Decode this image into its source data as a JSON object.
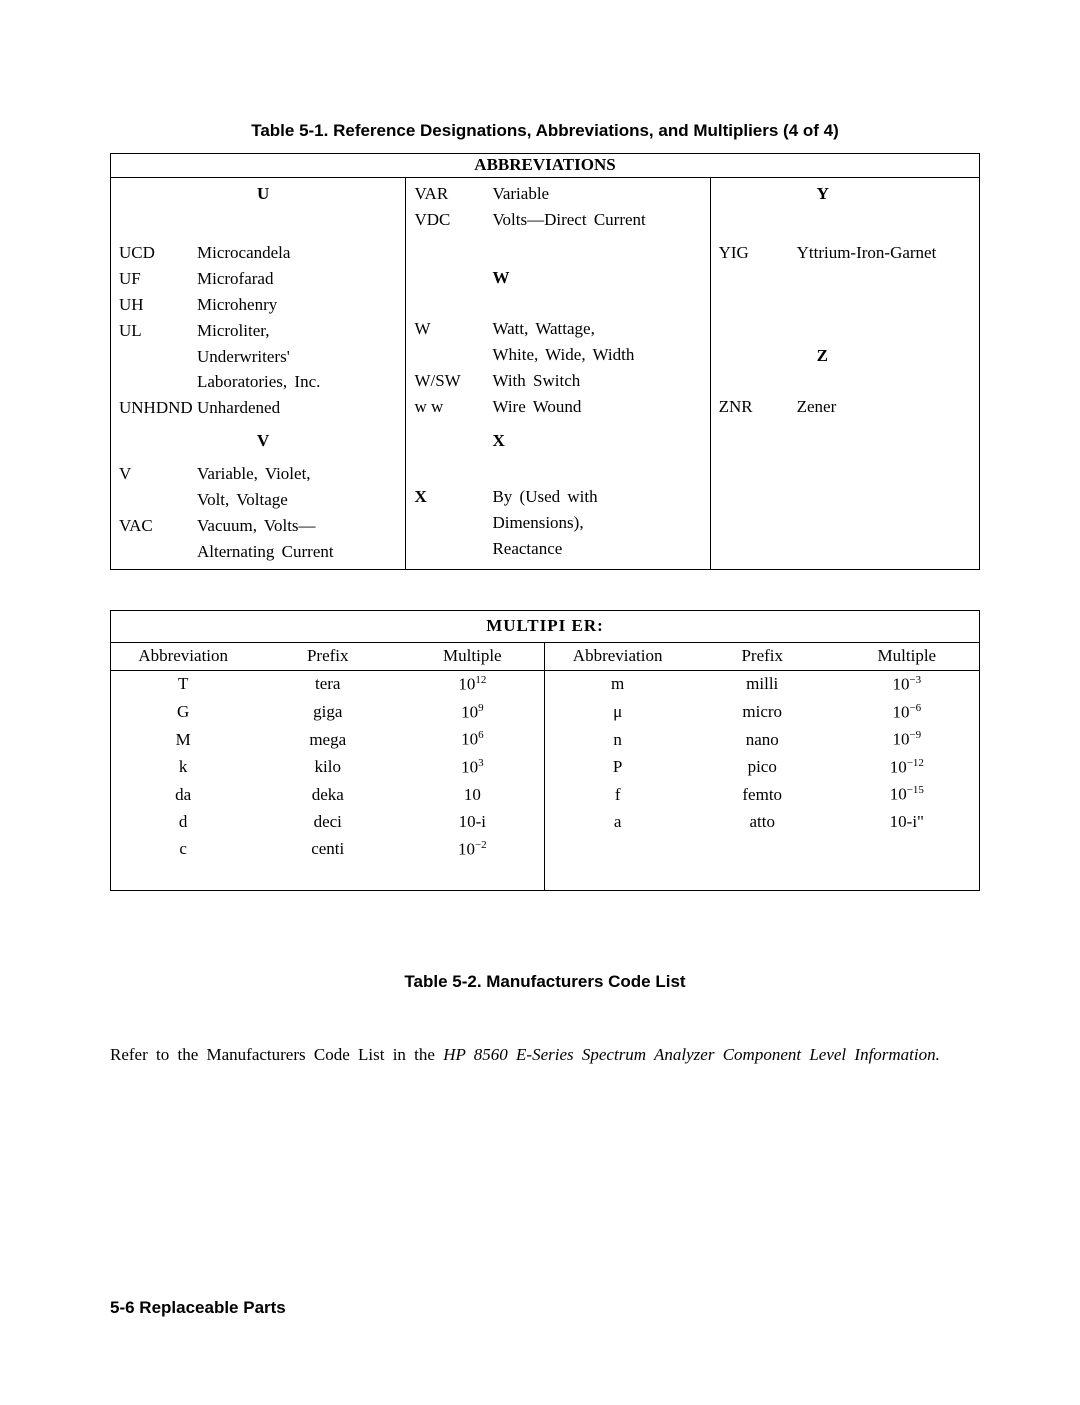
{
  "title1": "Table 5-1. Reference Designations, Abbreviations, and Multipliers (4 of 4)",
  "abbr_header": "ABBREVIATIONS",
  "col1": {
    "letterU": "U",
    "rows": [
      {
        "a": "UCD",
        "d": "Microcandela"
      },
      {
        "a": "UF",
        "d": "Microfarad"
      },
      {
        "a": "UH",
        "d": "Microhenry"
      },
      {
        "a": "UL",
        "d": "Microliter,"
      },
      {
        "a": "",
        "d": "Underwriters'"
      },
      {
        "a": "",
        "d": "Laboratories, Inc."
      },
      {
        "a": "UNHDND",
        "d": "Unhardened"
      }
    ],
    "letterV": "V",
    "rowsV": [
      {
        "a": "V",
        "d": "Variable, Violet,"
      },
      {
        "a": "",
        "d": "Volt, Voltage"
      },
      {
        "a": "VAC",
        "d": "Vacuum, Volts—"
      },
      {
        "a": "",
        "d": "Alternating Current"
      }
    ]
  },
  "col2": {
    "rows1": [
      {
        "a": "VAR",
        "d": "Variable"
      },
      {
        "a": "VDC",
        "d": "Volts—Direct Current"
      }
    ],
    "letterW": "W",
    "rowsW": [
      {
        "a": "W",
        "d": "Watt, Wattage,"
      },
      {
        "a": "",
        "d": "White, Wide, Width"
      },
      {
        "a": "W/SW",
        "d": "With Switch"
      },
      {
        "a": "w w",
        "d": "Wire Wound"
      }
    ],
    "letterX": "X",
    "rowsX": [
      {
        "a": "X",
        "d": "By (Used with"
      },
      {
        "a": "",
        "d": "Dimensions),"
      },
      {
        "a": "",
        "d": "Reactance"
      }
    ]
  },
  "col3": {
    "letterY": "Y",
    "rowsY": [
      {
        "a": "YIG",
        "d": "Yttrium-Iron-Garnet"
      }
    ],
    "letterZ": "Z",
    "rowsZ": [
      {
        "a": "ZNR",
        "d": "Zener"
      }
    ]
  },
  "mult": {
    "header": "MULTIPI ER:",
    "cols": [
      "Abbreviation",
      "Prefix",
      "Multiple",
      "Abbreviation",
      "Prefix",
      "Multiple"
    ],
    "rows": [
      [
        "T",
        "tera",
        "10<sup>12</sup>",
        "m",
        "milli",
        "10<sup>−3</sup>"
      ],
      [
        "G",
        "giga",
        "10<sup>9</sup>",
        "<span class=\"mu\">μ</span>",
        "micro",
        "10<sup>−6</sup>"
      ],
      [
        "M",
        "mega",
        "10<sup>6</sup>",
        "n",
        "nano",
        "10<sup>−9</sup>"
      ],
      [
        "k",
        "kilo",
        "10<sup>3</sup>",
        "P",
        "pico",
        "10<sup>−12</sup>"
      ],
      [
        "da",
        "deka",
        "10",
        "f",
        "femto",
        "10<sup>−15</sup>"
      ],
      [
        "d",
        "deci",
        "10-i",
        "a",
        "atto",
        "10-i\""
      ],
      [
        "c",
        "centi",
        "10<sup>−2</sup>",
        "",
        "",
        ""
      ]
    ]
  },
  "title2": "Table 5-2. Manufacturers Code List",
  "para1": "Refer to the Manufacturers Code List in the ",
  "para_em": "HP 8560 E-Series Spectrum Analyzer Component Level Information.",
  "footer": "5-6 Replaceable Parts"
}
